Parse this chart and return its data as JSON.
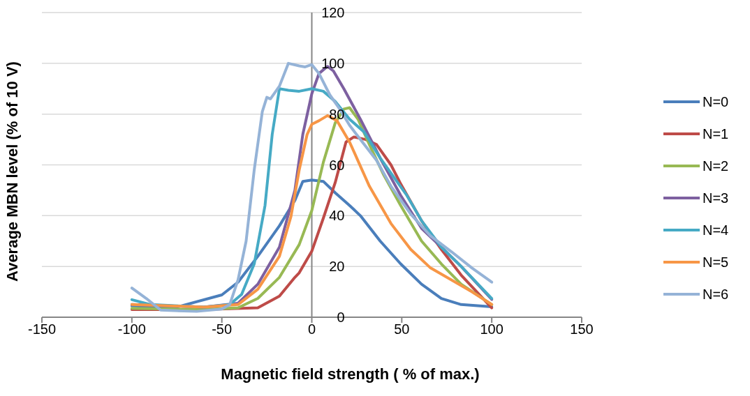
{
  "chart_data": {
    "type": "line",
    "xlabel": "Magnetic field strength ( % of max.)",
    "ylabel": "Average MBN level (% of 10 V)",
    "xlim": [
      -150,
      150
    ],
    "xticks": [
      -150,
      -100,
      -50,
      0,
      50,
      100,
      150
    ],
    "ylim": [
      0,
      120
    ],
    "yticks": [
      0,
      20,
      40,
      60,
      80,
      100,
      120
    ],
    "grid": "y",
    "legend": "right",
    "line_style": "solid",
    "marker": "none",
    "series": [
      {
        "name": "N=0",
        "color": "#4a7ebb",
        "x": [
          -100,
          -85,
          -75,
          -50,
          -41,
          -30,
          -18,
          -9.4,
          -5,
          0,
          6.4,
          13,
          21,
          27,
          38,
          49.4,
          61,
          72,
          83,
          100
        ],
        "values": [
          4.5,
          4,
          4,
          8.8,
          13.8,
          24,
          36,
          46,
          53.5,
          54,
          53.5,
          49,
          44,
          40,
          30,
          21,
          13,
          7.4,
          5,
          4.1
        ]
      },
      {
        "name": "N=1",
        "color": "#be4b48",
        "x": [
          -100,
          -60,
          -30,
          -18,
          -9.4,
          -7,
          0,
          6.4,
          13,
          19,
          23.4,
          30,
          36,
          44,
          49.4,
          61,
          72,
          83,
          100
        ],
        "values": [
          3,
          3,
          3.7,
          8.3,
          15.7,
          17.5,
          26,
          39,
          53,
          69,
          71,
          70,
          68,
          60,
          52.5,
          38,
          26.7,
          16.6,
          3.7
        ]
      },
      {
        "name": "N=2",
        "color": "#98b954",
        "x": [
          -100,
          -60,
          -41,
          -30,
          -18,
          -7,
          0,
          6.4,
          13,
          17.8,
          21,
          25.7,
          32,
          40,
          49.4,
          61,
          72,
          83,
          100
        ],
        "values": [
          3.5,
          3,
          3.7,
          7.4,
          15.7,
          28.6,
          42,
          61,
          76.5,
          82,
          82.5,
          78,
          68,
          56,
          44,
          30,
          21,
          13,
          5
        ]
      },
      {
        "name": "N=3",
        "color": "#7d60a0",
        "x": [
          -100,
          -60,
          -41,
          -30,
          -18,
          -9.4,
          -5,
          0,
          4,
          8.7,
          12,
          17.8,
          27,
          38,
          49.4,
          61,
          72,
          83,
          100
        ],
        "values": [
          5,
          4,
          5.5,
          13,
          27.6,
          50,
          72,
          88,
          96,
          98.8,
          97,
          90,
          78,
          62.7,
          48,
          35,
          27.6,
          20,
          7
        ]
      },
      {
        "name": "N=4",
        "color": "#46aac5",
        "x": [
          -100,
          -90,
          -60,
          -45.6,
          -39,
          -32,
          -26,
          -22,
          -18,
          -13,
          -7,
          0,
          6.4,
          13,
          21,
          29,
          38,
          52.8,
          61,
          72,
          83,
          100
        ],
        "values": [
          6.9,
          5,
          4,
          5,
          9,
          21,
          44,
          72,
          90,
          89.4,
          89,
          90,
          89,
          85,
          78,
          73,
          62.7,
          48,
          38,
          27.6,
          20,
          7.4
        ]
      },
      {
        "name": "N=5",
        "color": "#f79646",
        "x": [
          -100,
          -60,
          -41,
          -30,
          -18,
          -11.6,
          -7,
          -2.6,
          0,
          4,
          8.7,
          14,
          21,
          32,
          44,
          55,
          66,
          77.6,
          89,
          100
        ],
        "values": [
          5,
          4,
          5,
          11,
          24,
          39.6,
          58,
          72,
          76,
          77.4,
          79.4,
          77.4,
          69,
          51.6,
          36.9,
          26.7,
          19.4,
          14.7,
          10,
          5
        ]
      },
      {
        "name": "N=6",
        "color": "#95b3d7",
        "x": [
          -100,
          -92,
          -84,
          -64,
          -50,
          -45.6,
          -41,
          -36.5,
          -32,
          -27.5,
          -25,
          -23,
          -18,
          -13,
          -7,
          -3.7,
          0,
          4,
          10,
          15.5,
          21,
          27,
          36,
          44,
          55,
          66,
          77.6,
          89,
          100
        ],
        "values": [
          11.5,
          7.4,
          2.8,
          2.3,
          3.2,
          5,
          14.7,
          30,
          58,
          81,
          86.6,
          86,
          91,
          100,
          99,
          98.6,
          99.5,
          96,
          87.6,
          82,
          75.6,
          70,
          61.8,
          51.6,
          40.6,
          32,
          25.8,
          19.4,
          13.8
        ]
      }
    ]
  }
}
